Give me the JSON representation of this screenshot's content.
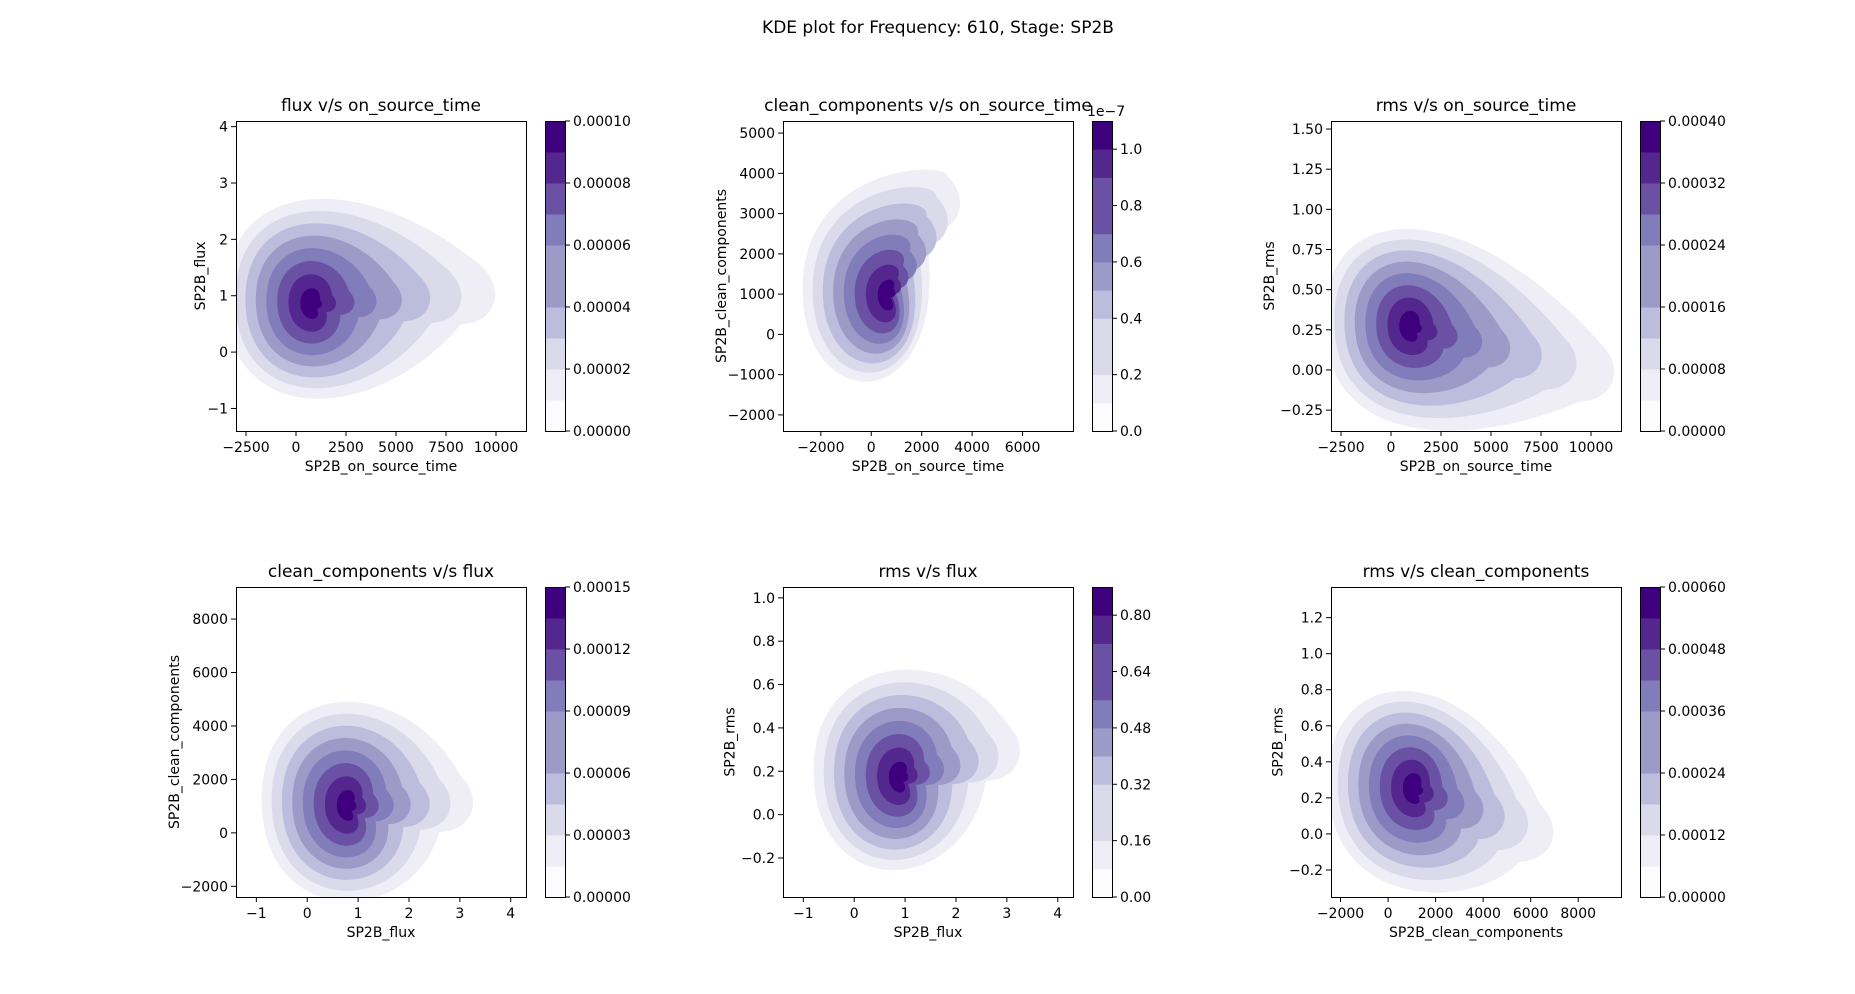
{
  "figure_title": "KDE plot for Frequency: 610, Stage: SP2B",
  "palette": [
    "#fcfbfd",
    "#efedf5",
    "#dadaeb",
    "#bcbddc",
    "#9e9ac8",
    "#807dba",
    "#6a51a3",
    "#54278f",
    "#3f007d"
  ],
  "chart_data": [
    {
      "type": "kde",
      "title": "flux v/s on_source_time",
      "xlabel": "SP2B_on_source_time",
      "ylabel": "SP2B_flux",
      "xlim": [
        -3000,
        11500
      ],
      "ylim": [
        -1.4,
        4.1
      ],
      "xticks": [
        -2500,
        0,
        2500,
        5000,
        7500,
        10000
      ],
      "xtick_labels": [
        "−2500",
        "0",
        "2500",
        "5000",
        "7500",
        "10000"
      ],
      "yticks": [
        -1,
        0,
        1,
        2,
        3,
        4
      ],
      "ytick_labels": [
        "−1",
        "0",
        "1",
        "2",
        "3",
        "4"
      ],
      "density_peak": {
        "x": 900,
        "y": 0.85
      },
      "tail_extent": {
        "x": 9300,
        "y": 1.05
      },
      "colorbar": {
        "range": [
          0,
          0.0001
        ],
        "levels": 10,
        "ticks": [
          0,
          2e-05,
          4e-05,
          6e-05,
          8e-05,
          0.0001
        ],
        "tick_labels": [
          "0.00000",
          "0.00002",
          "0.00004",
          "0.00006",
          "0.00008",
          "0.00010"
        ],
        "offset_text": ""
      }
    },
    {
      "type": "kde",
      "title": "clean_components v/s on_source_time",
      "xlabel": "SP2B_on_source_time",
      "ylabel": "SP2B_clean_components",
      "xlim": [
        -3500,
        8000
      ],
      "ylim": [
        -2400,
        5300
      ],
      "xticks": [
        -2000,
        0,
        2000,
        4000,
        6000
      ],
      "xtick_labels": [
        "−2000",
        "0",
        "2000",
        "4000",
        "6000"
      ],
      "yticks": [
        -2000,
        -1000,
        0,
        1000,
        2000,
        3000,
        4000,
        5000
      ],
      "ytick_labels": [
        "−2000",
        "−1000",
        "0",
        "1000",
        "2000",
        "3000",
        "4000",
        "5000"
      ],
      "density_peak": {
        "x": 800,
        "y": 950
      },
      "tail_extent": {
        "x": 3000,
        "y": 3300
      },
      "colorbar": {
        "range": [
          0,
          1.1
        ],
        "levels": 11,
        "ticks": [
          0,
          0.2,
          0.4,
          0.6,
          0.8,
          1.0
        ],
        "tick_labels": [
          "0.0",
          "0.2",
          "0.4",
          "0.6",
          "0.8",
          "1.0"
        ],
        "offset_text": "1e−7"
      }
    },
    {
      "type": "kde",
      "title": "rms v/s on_source_time",
      "xlabel": "SP2B_on_source_time",
      "ylabel": "SP2B_rms",
      "xlim": [
        -3000,
        11500
      ],
      "ylim": [
        -0.38,
        1.55
      ],
      "xticks": [
        -2500,
        0,
        2500,
        5000,
        7500,
        10000
      ],
      "xtick_labels": [
        "−2500",
        "0",
        "2500",
        "5000",
        "7500",
        "10000"
      ],
      "yticks": [
        -0.25,
        0,
        0.25,
        0.5,
        0.75,
        1.0,
        1.25,
        1.5
      ],
      "ytick_labels": [
        "−0.25",
        "0.00",
        "0.25",
        "0.50",
        "0.75",
        "1.00",
        "1.25",
        "1.50"
      ],
      "density_peak": {
        "x": 1100,
        "y": 0.27
      },
      "tail_extent": {
        "x": 10500,
        "y": 0.0
      },
      "colorbar": {
        "range": [
          0,
          0.0004
        ],
        "levels": 10,
        "ticks": [
          0,
          8e-05,
          0.00016,
          0.00024,
          0.00032,
          0.0004
        ],
        "tick_labels": [
          "0.00000",
          "0.00008",
          "0.00016",
          "0.00024",
          "0.00032",
          "0.00040"
        ],
        "offset_text": ""
      }
    },
    {
      "type": "kde",
      "title": "clean_components v/s flux",
      "xlabel": "SP2B_flux",
      "ylabel": "SP2B_clean_components",
      "xlim": [
        -1.4,
        4.3
      ],
      "ylim": [
        -2400,
        9200
      ],
      "xticks": [
        -1,
        0,
        1,
        2,
        3,
        4
      ],
      "xtick_labels": [
        "−1",
        "0",
        "1",
        "2",
        "3",
        "4"
      ],
      "yticks": [
        -2000,
        0,
        2000,
        4000,
        6000,
        8000
      ],
      "ytick_labels": [
        "−2000",
        "0",
        "2000",
        "4000",
        "6000",
        "8000"
      ],
      "density_peak": {
        "x": 0.85,
        "y": 1000
      },
      "tail_extent": {
        "x": 3.0,
        "y": 1200
      },
      "colorbar": {
        "range": [
          0,
          0.00015
        ],
        "levels": 10,
        "ticks": [
          0,
          3e-05,
          6e-05,
          9e-05,
          0.00012,
          0.00015
        ],
        "tick_labels": [
          "0.00000",
          "0.00003",
          "0.00006",
          "0.00009",
          "0.00012",
          "0.00015"
        ],
        "offset_text": ""
      }
    },
    {
      "type": "kde",
      "title": "rms v/s flux",
      "xlabel": "SP2B_flux",
      "ylabel": "SP2B_rms",
      "xlim": [
        -1.4,
        4.3
      ],
      "ylim": [
        -0.38,
        1.05
      ],
      "xticks": [
        -1,
        0,
        1,
        2,
        3,
        4
      ],
      "xtick_labels": [
        "−1",
        "0",
        "1",
        "2",
        "3",
        "4"
      ],
      "yticks": [
        -0.2,
        0,
        0.2,
        0.4,
        0.6,
        0.8,
        1.0
      ],
      "ytick_labels": [
        "−0.2",
        "0.0",
        "0.2",
        "0.4",
        "0.6",
        "0.8",
        "1.0"
      ],
      "density_peak": {
        "x": 0.95,
        "y": 0.17
      },
      "tail_extent": {
        "x": 3.0,
        "y": 0.3
      },
      "colorbar": {
        "range": [
          0,
          0.88
        ],
        "levels": 11,
        "ticks": [
          0,
          0.16,
          0.32,
          0.48,
          0.64,
          0.8
        ],
        "tick_labels": [
          "0.00",
          "0.16",
          "0.32",
          "0.48",
          "0.64",
          "0.80"
        ],
        "offset_text": ""
      }
    },
    {
      "type": "kde",
      "title": "rms v/s clean_components",
      "xlabel": "SP2B_clean_components",
      "ylabel": "SP2B_rms",
      "xlim": [
        -2400,
        9800
      ],
      "ylim": [
        -0.35,
        1.37
      ],
      "xticks": [
        -2000,
        0,
        2000,
        4000,
        6000,
        8000
      ],
      "xtick_labels": [
        "−2000",
        "0",
        "2000",
        "4000",
        "6000",
        "8000"
      ],
      "yticks": [
        -0.2,
        0,
        0.2,
        0.4,
        0.6,
        0.8,
        1.0,
        1.2
      ],
      "ytick_labels": [
        "−0.2",
        "0.0",
        "0.2",
        "0.4",
        "0.6",
        "0.8",
        "1.0",
        "1.2"
      ],
      "density_peak": {
        "x": 1200,
        "y": 0.25
      },
      "tail_extent": {
        "x": 6400,
        "y": 0.02
      },
      "colorbar": {
        "range": [
          0,
          0.0006
        ],
        "levels": 10,
        "ticks": [
          0,
          0.00012,
          0.00024,
          0.00036,
          0.00048,
          0.0006
        ],
        "tick_labels": [
          "0.00000",
          "0.00012",
          "0.00024",
          "0.00036",
          "0.00048",
          "0.00060"
        ],
        "offset_text": ""
      }
    }
  ]
}
